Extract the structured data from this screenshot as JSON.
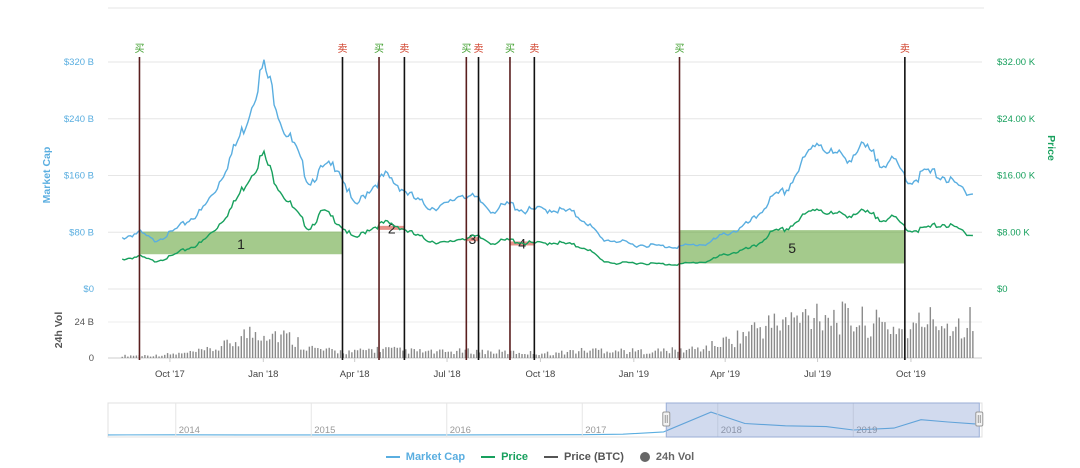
{
  "colors": {
    "market_cap": "#5aaee0",
    "price": "#17a05d",
    "vol": "#8a8a8a",
    "price_btc": "#555555",
    "buy": "#3f9e2d",
    "sell": "#d0402a",
    "band_green": "#5a9e2d",
    "band_red": "#d9574a"
  },
  "axes": {
    "left_title": "Market Cap",
    "right_title": "Price",
    "vol_title": "24h Vol",
    "left_ticks": [
      "$320 B",
      "$240 B",
      "$160 B",
      "$80 B",
      "$0"
    ],
    "right_ticks": [
      "$32.00 K",
      "$24.00 K",
      "$16.00 K",
      "$8.00 K",
      "$0"
    ],
    "vol_ticks": [
      "24 B",
      "0"
    ],
    "x_ticks": [
      "Oct '17",
      "Jan '18",
      "Apr '18",
      "Jul '18",
      "Oct '18",
      "Jan '19",
      "Apr '19",
      "Jul '19",
      "Oct '19"
    ],
    "navigator_years": [
      "2014",
      "2015",
      "2016",
      "2017",
      "2018",
      "2019"
    ]
  },
  "legend": [
    {
      "label": "Market Cap",
      "symbol": "line",
      "color": "#5aaee0"
    },
    {
      "label": "Price",
      "symbol": "line",
      "color": "#17a05d"
    },
    {
      "label": "Price (BTC)",
      "symbol": "line",
      "color": "#555555"
    },
    {
      "label": "24h Vol",
      "symbol": "dot",
      "color": "#666666"
    }
  ],
  "chart_data": {
    "type": "line",
    "x_unit": "month",
    "x": [
      "2017-08-15",
      "2017-09-01",
      "2017-09-15",
      "2017-10-01",
      "2017-10-15",
      "2017-11-01",
      "2017-11-15",
      "2017-12-01",
      "2017-12-15",
      "2018-01-01",
      "2018-01-10",
      "2018-01-20",
      "2018-02-01",
      "2018-02-15",
      "2018-03-01",
      "2018-03-15",
      "2018-04-01",
      "2018-04-15",
      "2018-05-01",
      "2018-05-15",
      "2018-06-01",
      "2018-06-15",
      "2018-07-01",
      "2018-07-15",
      "2018-08-01",
      "2018-08-15",
      "2018-09-01",
      "2018-09-15",
      "2018-10-01",
      "2018-10-15",
      "2018-11-01",
      "2018-11-15",
      "2018-12-01",
      "2018-12-15",
      "2019-01-01",
      "2019-01-15",
      "2019-02-01",
      "2019-02-15",
      "2019-03-01",
      "2019-03-15",
      "2019-04-01",
      "2019-04-15",
      "2019-05-01",
      "2019-05-15",
      "2019-06-01",
      "2019-06-15",
      "2019-07-01",
      "2019-07-15",
      "2019-08-01",
      "2019-08-15",
      "2019-09-01",
      "2019-09-15",
      "2019-10-01",
      "2019-10-15",
      "2019-11-01",
      "2019-11-15",
      "2019-12-01"
    ],
    "series": [
      {
        "name": "Market Cap",
        "axis": "left",
        "values": [
          72,
          80,
          68,
          78,
          92,
          110,
          140,
          190,
          235,
          315,
          280,
          230,
          200,
          150,
          170,
          175,
          115,
          140,
          160,
          145,
          125,
          115,
          118,
          135,
          125,
          110,
          120,
          110,
          112,
          112,
          108,
          95,
          70,
          68,
          62,
          62,
          60,
          60,
          62,
          64,
          78,
          84,
          100,
          125,
          140,
          175,
          210,
          190,
          185,
          200,
          180,
          178,
          150,
          165,
          160,
          145,
          135
        ]
      },
      {
        "name": "Price",
        "axis": "right",
        "values": [
          4.2,
          4.6,
          3.9,
          4.5,
          5.5,
          6.5,
          8.5,
          11.5,
          15.0,
          19.0,
          16.0,
          13.5,
          11.0,
          8.5,
          11.0,
          9.5,
          7.0,
          8.5,
          9.3,
          8.8,
          7.5,
          6.8,
          6.4,
          7.2,
          7.3,
          6.5,
          6.9,
          6.5,
          6.4,
          6.6,
          6.2,
          5.8,
          4.0,
          3.6,
          3.7,
          3.6,
          3.5,
          3.5,
          3.7,
          3.9,
          4.9,
          5.3,
          6.0,
          7.8,
          8.5,
          10.0,
          11.5,
          10.5,
          10.5,
          10.8,
          10.0,
          9.9,
          8.2,
          8.5,
          9.2,
          8.5,
          7.6
        ]
      },
      {
        "name": "24h Vol",
        "axis": "vol",
        "values": [
          1.5,
          1.8,
          1.6,
          2.5,
          3.0,
          4.5,
          6.0,
          10.0,
          16.0,
          18.0,
          17.0,
          15.0,
          12.0,
          7.0,
          5.0,
          4.5,
          4.0,
          5.5,
          6.0,
          5.0,
          4.5,
          4.0,
          4.0,
          4.5,
          4.5,
          4.0,
          3.8,
          3.5,
          3.2,
          3.0,
          4.5,
          5.0,
          5.5,
          5.0,
          4.5,
          4.5,
          5.0,
          5.0,
          6.0,
          7.0,
          11.0,
          14.0,
          20.0,
          22.0,
          24.0,
          26.0,
          32.0,
          28.0,
          25.0,
          24.0,
          22.0,
          20.0,
          18.0,
          26.0,
          24.0,
          22.0,
          26.0
        ]
      }
    ],
    "left_ylabel": "Market Cap",
    "right_ylabel": "Price",
    "left_ylim": [
      0,
      320
    ],
    "right_ylim": [
      0,
      32
    ],
    "vol_ylim": [
      0,
      40
    ],
    "signals": [
      {
        "label": "买",
        "type": "buy",
        "date": "2017-09-01"
      },
      {
        "label": "卖",
        "type": "sell",
        "date": "2018-03-20"
      },
      {
        "label": "买",
        "type": "buy",
        "date": "2018-04-25"
      },
      {
        "label": "卖",
        "type": "sell",
        "date": "2018-05-20"
      },
      {
        "label": "买",
        "type": "buy",
        "date": "2018-07-20"
      },
      {
        "label": "卖",
        "type": "sell",
        "date": "2018-08-01"
      },
      {
        "label": "买",
        "type": "buy",
        "date": "2018-09-01"
      },
      {
        "label": "卖",
        "type": "sell",
        "date": "2018-09-25"
      },
      {
        "label": "买",
        "type": "buy",
        "date": "2019-02-15"
      },
      {
        "label": "卖",
        "type": "sell",
        "date": "2019-09-25"
      }
    ],
    "trades": [
      {
        "label": "1",
        "result": "gain",
        "buy_date": "2017-09-01",
        "sell_date": "2018-03-20",
        "buy_price": 4.9,
        "sell_price": 8.1
      },
      {
        "label": "2",
        "result": "loss",
        "buy_date": "2018-04-25",
        "sell_date": "2018-05-20",
        "buy_price": 8.9,
        "sell_price": 8.5
      },
      {
        "label": "3",
        "result": "loss",
        "buy_date": "2018-07-20",
        "sell_date": "2018-08-01",
        "buy_price": 7.3,
        "sell_price": 7.1
      },
      {
        "label": "4",
        "result": "loss",
        "buy_date": "2018-09-01",
        "sell_date": "2018-09-25",
        "buy_price": 6.7,
        "sell_price": 6.4
      },
      {
        "label": "5",
        "result": "gain",
        "buy_date": "2019-02-15",
        "sell_date": "2019-09-25",
        "buy_price": 3.6,
        "sell_price": 8.3
      }
    ],
    "navigator": {
      "x": [
        2013.5,
        2014.0,
        2014.5,
        2015.0,
        2015.5,
        2016.0,
        2016.5,
        2017.0,
        2017.3,
        2017.6,
        2017.95,
        2018.2,
        2018.5,
        2018.8,
        2019.0,
        2019.3,
        2019.5,
        2019.7,
        2019.9
      ],
      "values": [
        1,
        2,
        1.5,
        1,
        1,
        1.5,
        2,
        4,
        10,
        40,
        300,
        150,
        120,
        110,
        65,
        90,
        200,
        170,
        145
      ],
      "selection": [
        "2017-08-15",
        "2019-12-01"
      ]
    }
  }
}
